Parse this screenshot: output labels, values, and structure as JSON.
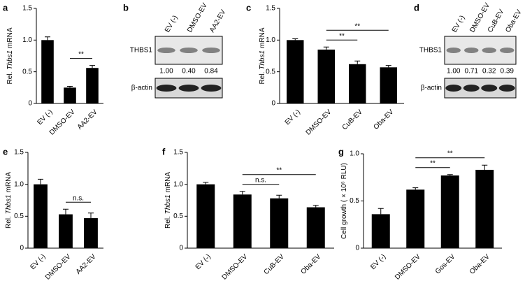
{
  "chart_data": [
    {
      "type": "bar",
      "panel": "a",
      "ylabel": {
        "pre": "Rel.",
        "gene": "Thbs1",
        "post": "mRNA"
      },
      "categories": [
        "EV (-)",
        "DMSO-EV",
        "AA2-EV"
      ],
      "values": [
        1.0,
        0.25,
        0.56
      ],
      "errors": [
        0.05,
        0.02,
        0.04
      ],
      "color": "#000000",
      "ylim": [
        0,
        1.5
      ],
      "yticks": [
        0,
        0.5,
        {
          "value": 1,
          "label": "1.0"
        },
        1.5
      ],
      "annotations": [
        {
          "between": [
            "DMSO-EV",
            "AA2-EV"
          ],
          "label": "**"
        }
      ]
    },
    {
      "type": "bar",
      "panel": "c",
      "ylabel": {
        "pre": "Rel.",
        "gene": "Thbs1",
        "post": "mRNA"
      },
      "categories": [
        "EV (-)",
        "DMSO-EV",
        "CuB-EV",
        "Oba-EV"
      ],
      "values": [
        1.0,
        0.85,
        0.62,
        0.57
      ],
      "errors": [
        0.02,
        0.04,
        0.05,
        0.03
      ],
      "color": "#000000",
      "ylim": [
        0,
        1.5
      ],
      "yticks": [
        0,
        0.5,
        {
          "value": 1,
          "label": "1.0"
        },
        1.5
      ],
      "annotations": [
        {
          "between": [
            "DMSO-EV",
            "CuB-EV"
          ],
          "label": "**"
        },
        {
          "between": [
            "DMSO-EV",
            "Oba-EV"
          ],
          "label": "**"
        }
      ]
    },
    {
      "type": "bar",
      "panel": "e",
      "ylabel": {
        "pre": "Rel.",
        "gene": "Thbs1",
        "post": "mRNA"
      },
      "categories": [
        "EV (-)",
        "DMSO-EV",
        "AA2-EV"
      ],
      "values": [
        1.0,
        0.53,
        0.47
      ],
      "errors": [
        0.08,
        0.08,
        0.08
      ],
      "color": "#000000",
      "ylim": [
        0,
        1.5
      ],
      "yticks": [
        0,
        0.5,
        {
          "value": 1,
          "label": "1.0"
        },
        1.5
      ],
      "annotations": [
        {
          "between": [
            "DMSO-EV",
            "AA2-EV"
          ],
          "label": "n.s."
        }
      ]
    },
    {
      "type": "bar",
      "panel": "f",
      "ylabel": {
        "pre": "Rel.",
        "gene": "Thbs1",
        "post": "mRNA"
      },
      "categories": [
        "EV (-)",
        "DMSO-EV",
        "CuB-EV",
        "Oba-EV"
      ],
      "values": [
        1.0,
        0.84,
        0.78,
        0.64
      ],
      "errors": [
        0.03,
        0.05,
        0.05,
        0.03
      ],
      "color": "#000000",
      "ylim": [
        0,
        1.5
      ],
      "yticks": [
        0,
        0.5,
        {
          "value": 1,
          "label": "1.0"
        },
        1.5
      ],
      "annotations": [
        {
          "between": [
            "DMSO-EV",
            "CuB-EV"
          ],
          "label": "n.s."
        },
        {
          "between": [
            "DMSO-EV",
            "Oba-EV"
          ],
          "label": "**"
        }
      ]
    },
    {
      "type": "bar",
      "panel": "g",
      "ylabel": {
        "pre": "Cell growth ( × 10⁵ RLU)"
      },
      "categories": [
        "EV (-)",
        "DMSO-EV",
        "Gos-EV",
        "Oba-EV"
      ],
      "values": [
        0.36,
        0.62,
        0.77,
        0.83
      ],
      "errors": [
        0.06,
        0.02,
        0.01,
        0.05
      ],
      "color": "#000000",
      "ylim": [
        0,
        1
      ],
      "yticks": [
        0,
        0.5,
        {
          "value": 1,
          "label": "1.0"
        }
      ],
      "annotations": [
        {
          "between": [
            "DMSO-EV",
            "Gos-EV"
          ],
          "label": "**"
        },
        {
          "between": [
            "DMSO-EV",
            "Oba-EV"
          ],
          "label": "**"
        }
      ]
    }
  ],
  "blots": [
    {
      "panel": "b",
      "lanes": [
        "EV (-)",
        "DMSO-EV",
        "AA2-EV"
      ],
      "protein": "THBS1",
      "ratios": [
        "1.00",
        "0.40",
        "0.84"
      ],
      "loading": "β-actin"
    },
    {
      "panel": "d",
      "lanes": [
        "EV (-)",
        "DMSO-EV",
        "CuB-EV",
        "Oba-EV"
      ],
      "protein": "THBS1",
      "ratios": [
        "1.00",
        "0.71",
        "0.32",
        "0.39"
      ],
      "loading": "β-actin"
    }
  ]
}
